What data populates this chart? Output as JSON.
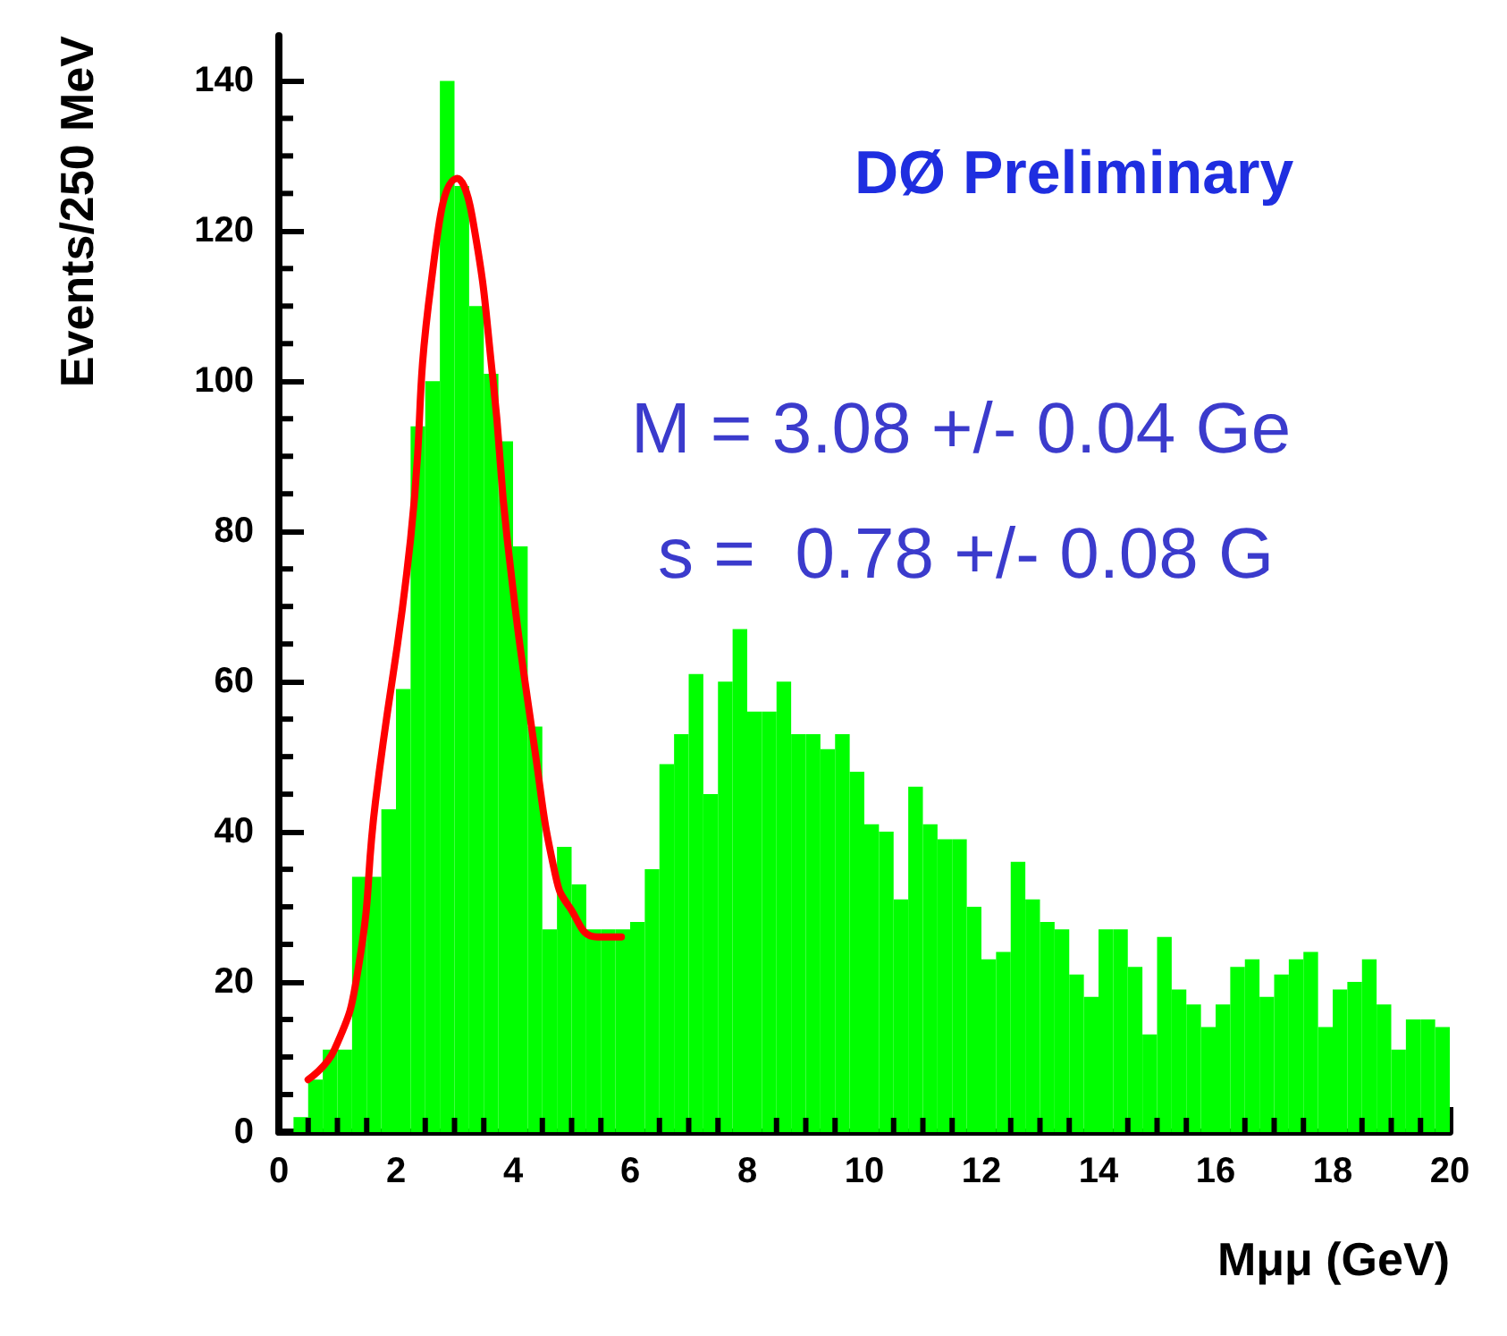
{
  "chart_data": {
    "type": "histogram",
    "xlabel": "Mμμ (GeV)",
    "ylabel": "Events/250 MeV",
    "annotations": [
      "DØ Preliminary",
      "M = 3.08 +/- 0.04 Ge",
      "s =  0.78 +/- 0.08 G"
    ],
    "series": [
      {
        "color": "#00ff00",
        "bins": [
          0.25,
          0.5,
          0.75,
          1,
          1.25,
          1.5,
          1.75,
          2,
          2.25,
          2.5,
          2.75,
          3,
          3.25,
          3.5,
          3.75,
          4,
          4.25,
          4.5,
          4.75,
          5,
          5.25,
          5.5,
          5.75,
          6,
          6.25,
          6.5,
          6.75,
          7,
          7.25,
          7.5,
          7.75,
          8,
          8.25,
          8.5,
          8.75,
          9,
          9.25,
          9.5,
          9.75,
          10,
          10.25,
          10.5,
          10.75,
          11,
          11.25,
          11.5,
          11.75,
          12,
          12.25,
          12.5,
          12.75,
          13,
          13.25,
          13.5,
          13.75,
          14,
          14.25,
          14.5,
          14.75,
          15,
          15.25,
          15.5,
          15.75,
          16,
          16.25,
          16.5,
          16.75,
          17,
          17.25,
          17.5,
          17.75,
          18,
          18.25,
          18.5,
          18.75,
          19,
          19.25,
          19.5,
          19.75,
          20
        ],
        "values": [
          2,
          7,
          11,
          11,
          34,
          34,
          43,
          59,
          94,
          100,
          140,
          126,
          110,
          101,
          92,
          78,
          54,
          27,
          38,
          33,
          27,
          27,
          27,
          28,
          35,
          49,
          53,
          61,
          45,
          60,
          67,
          56,
          56,
          60,
          53,
          53,
          51,
          53,
          48,
          41,
          40,
          31,
          46,
          41,
          39,
          39,
          30,
          23,
          24,
          36,
          31,
          28,
          27,
          21,
          18,
          27,
          27,
          22,
          13,
          26,
          19,
          17,
          14,
          17,
          22,
          23,
          18,
          21,
          23,
          24,
          14,
          19,
          20,
          23,
          17,
          11,
          15,
          15,
          14
        ]
      },
      {
        "type": "line",
        "color": "#ff0000",
        "x": [
          0.5,
          0.95,
          1.36,
          1.65,
          2.25,
          2.6,
          3.05,
          3.3,
          3.66,
          3.9,
          4.37,
          4.73,
          4.96,
          5.44,
          5.85
        ],
        "values": [
          7,
          11,
          22,
          44,
          79,
          113,
          127,
          122,
          100,
          79,
          51,
          34,
          30,
          26,
          26
        ]
      }
    ],
    "xlim": [
      0,
      20
    ],
    "xticks": [
      0,
      2,
      4,
      6,
      8,
      10,
      12,
      14,
      16,
      18,
      20
    ],
    "ylim": [
      0,
      146
    ],
    "yticks": [
      0,
      20,
      40,
      60,
      80,
      100,
      120,
      140
    ],
    "grid": false
  }
}
